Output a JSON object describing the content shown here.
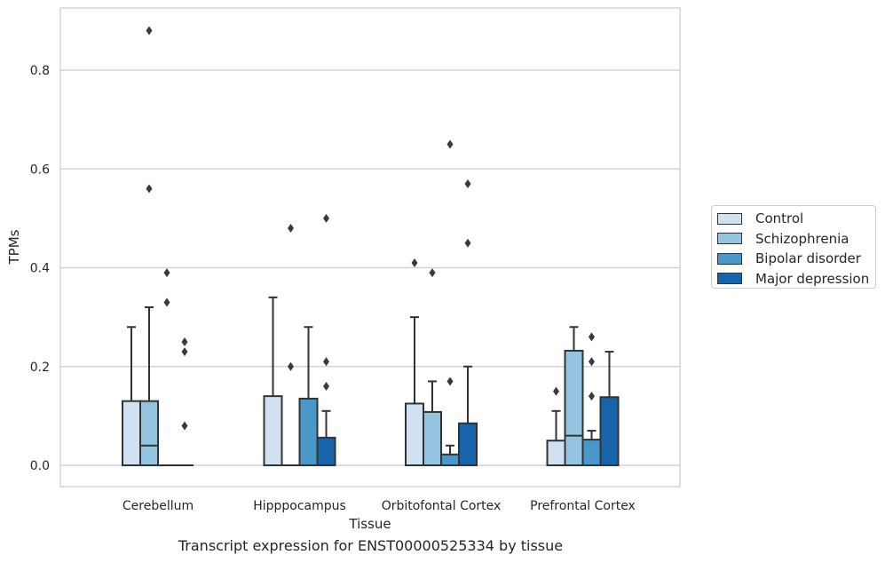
{
  "chart_data": {
    "type": "box",
    "title": "",
    "caption": "Transcript expression for ENST00000525334 by tissue",
    "xlabel": "Tissue",
    "ylabel": "TPMs",
    "ylim": [
      -0.042,
      0.93
    ],
    "yticks": [
      "0.0",
      "0.2",
      "0.4",
      "0.6",
      "0.8"
    ],
    "ytick_values": [
      0.0,
      0.2,
      0.4,
      0.6,
      0.8
    ],
    "grid": true,
    "legend_position": "right",
    "categories": [
      "Cerebellum",
      "Hipppocampus",
      "Orbitofontal Cortex",
      "Prefrontal Cortex"
    ],
    "series": [
      {
        "name": "Control",
        "color": "#d0e1f2",
        "boxes": [
          {
            "q1": 0.0,
            "median": 0.0,
            "q3": 0.13,
            "whisker_low": 0.0,
            "whisker_high": 0.28,
            "outliers": []
          },
          {
            "q1": 0.0,
            "median": 0.0,
            "q3": 0.14,
            "whisker_low": 0.0,
            "whisker_high": 0.34,
            "outliers": []
          },
          {
            "q1": 0.0,
            "median": 0.0,
            "q3": 0.125,
            "whisker_low": 0.0,
            "whisker_high": 0.3,
            "outliers": [
              0.41
            ]
          },
          {
            "q1": 0.0,
            "median": 0.0,
            "q3": 0.05,
            "whisker_low": 0.0,
            "whisker_high": 0.11,
            "outliers": [
              0.15
            ]
          }
        ]
      },
      {
        "name": "Schizophrenia",
        "color": "#94c4df",
        "boxes": [
          {
            "q1": 0.0,
            "median": 0.04,
            "q3": 0.13,
            "whisker_low": 0.0,
            "whisker_high": 0.32,
            "outliers": [
              0.88,
              0.56
            ]
          },
          {
            "q1": 0.0,
            "median": 0.0,
            "q3": 0.0,
            "whisker_low": 0.0,
            "whisker_high": 0.0,
            "outliers": [
              0.48,
              0.2
            ]
          },
          {
            "q1": 0.0,
            "median": 0.0,
            "q3": 0.108,
            "whisker_low": 0.0,
            "whisker_high": 0.17,
            "outliers": [
              0.39
            ]
          },
          {
            "q1": 0.0,
            "median": 0.06,
            "q3": 0.232,
            "whisker_low": 0.0,
            "whisker_high": 0.28,
            "outliers": []
          }
        ]
      },
      {
        "name": "Bipolar disorder",
        "color": "#4a98c9",
        "boxes": [
          {
            "q1": 0.0,
            "median": 0.0,
            "q3": 0.0,
            "whisker_low": 0.0,
            "whisker_high": 0.0,
            "outliers": [
              0.39,
              0.33
            ]
          },
          {
            "q1": 0.0,
            "median": 0.0,
            "q3": 0.135,
            "whisker_low": 0.0,
            "whisker_high": 0.28,
            "outliers": []
          },
          {
            "q1": 0.0,
            "median": 0.0,
            "q3": 0.022,
            "whisker_low": 0.0,
            "whisker_high": 0.04,
            "outliers": [
              0.17,
              0.65
            ]
          },
          {
            "q1": 0.0,
            "median": 0.0,
            "q3": 0.052,
            "whisker_low": 0.0,
            "whisker_high": 0.07,
            "outliers": [
              0.26,
              0.21,
              0.14
            ]
          }
        ]
      },
      {
        "name": "Major depression",
        "color": "#1764ab",
        "boxes": [
          {
            "q1": 0.0,
            "median": 0.0,
            "q3": 0.0,
            "whisker_low": 0.0,
            "whisker_high": 0.0,
            "outliers": [
              0.25,
              0.23,
              0.08
            ]
          },
          {
            "q1": 0.0,
            "median": 0.0,
            "q3": 0.056,
            "whisker_low": 0.0,
            "whisker_high": 0.11,
            "outliers": [
              0.5,
              0.21,
              0.16
            ]
          },
          {
            "q1": 0.0,
            "median": 0.0,
            "q3": 0.085,
            "whisker_low": 0.0,
            "whisker_high": 0.2,
            "outliers": [
              0.57,
              0.45
            ]
          },
          {
            "q1": 0.0,
            "median": 0.0,
            "q3": 0.138,
            "whisker_low": 0.0,
            "whisker_high": 0.23,
            "outliers": []
          }
        ]
      }
    ]
  }
}
